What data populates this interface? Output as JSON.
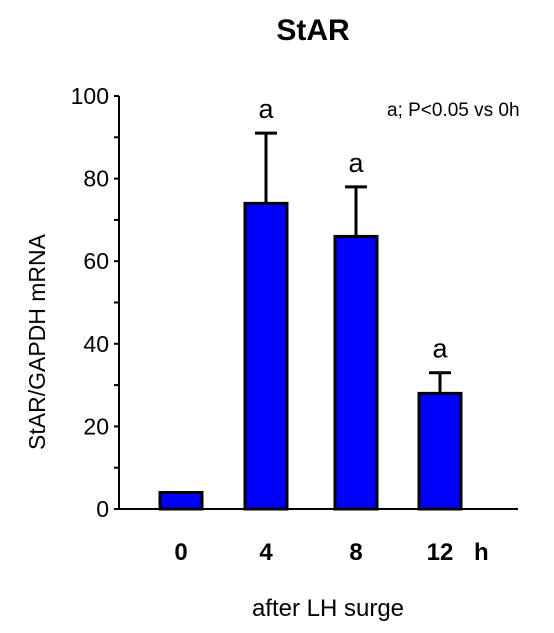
{
  "chart_data": {
    "type": "bar",
    "title": "StAR",
    "ylabel": "StAR/GAPDH mRNA",
    "xlabel": "after LH surge",
    "x_unit": "h",
    "categories": [
      "0",
      "4",
      "8",
      "12"
    ],
    "values": [
      4,
      74,
      66,
      28
    ],
    "errors": [
      0,
      17,
      12,
      5
    ],
    "significance": [
      "",
      "a",
      "a",
      "a"
    ],
    "annotation": "a; P<0.05 vs 0h",
    "ylim": [
      0,
      100
    ],
    "yticks": [
      "0",
      "20",
      "40",
      "60",
      "80",
      "100"
    ],
    "bar_color": "#0000ff",
    "grid": false,
    "legend": "none"
  }
}
